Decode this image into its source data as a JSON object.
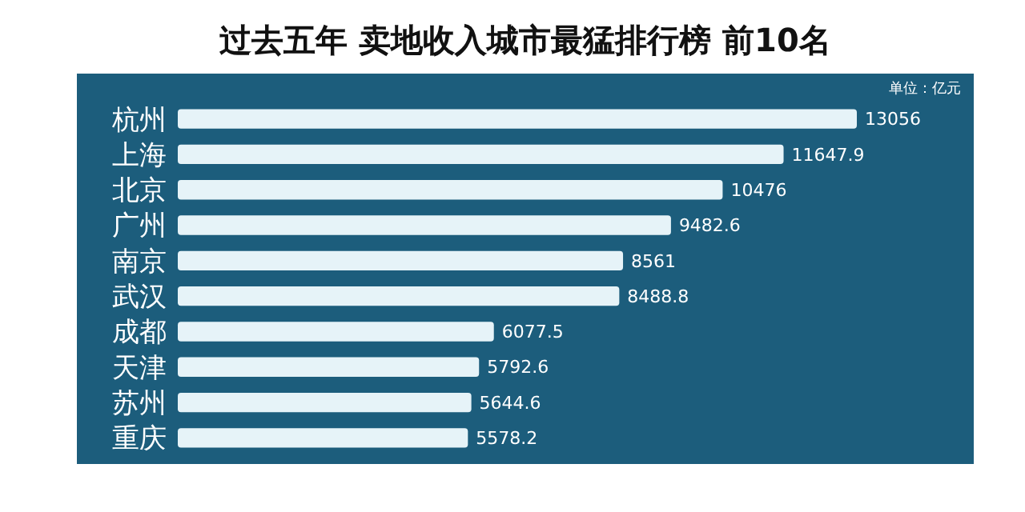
{
  "chart_data": {
    "type": "bar",
    "orientation": "horizontal",
    "title": "过去五年 卖地收入城市最猛排行榜 前10名",
    "categories": [
      "杭州",
      "上海",
      "北京",
      "广州",
      "南京",
      "武汉",
      "成都",
      "天津",
      "苏州",
      "重庆"
    ],
    "values": [
      13056,
      11647.9,
      10476,
      9482.6,
      8561,
      8488.8,
      6077.5,
      5792.6,
      5644.6,
      5578.2
    ],
    "color": "#e6f3f8",
    "data_labels": true,
    "annotations": [
      "单位：亿元"
    ]
  }
}
